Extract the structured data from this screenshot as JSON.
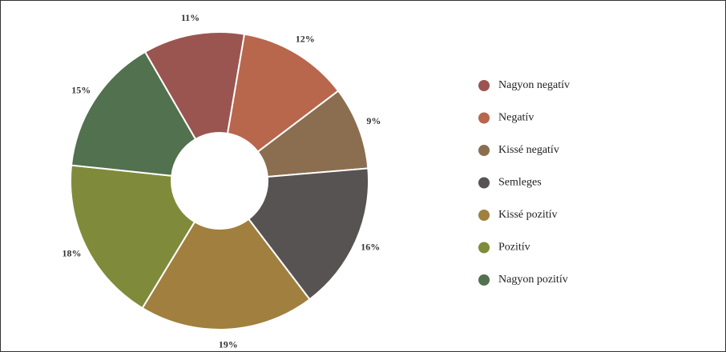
{
  "chart_data": {
    "type": "donut",
    "categories": [
      "Nagyon negatív",
      "Negatív",
      "Kissé negatív",
      "Semleges",
      "Kissé pozitív",
      "Pozitív",
      "Nagyon pozitív"
    ],
    "values": [
      11,
      12,
      9,
      16,
      19,
      18,
      15
    ],
    "value_labels": [
      "11%",
      "12%",
      "9%",
      "16%",
      "19%",
      "18%",
      "15%"
    ],
    "colors": [
      "#9b5550",
      "#b8664c",
      "#8b6e50",
      "#575353",
      "#a07f3f",
      "#7f8b3a",
      "#52714e"
    ],
    "legend": "right"
  }
}
